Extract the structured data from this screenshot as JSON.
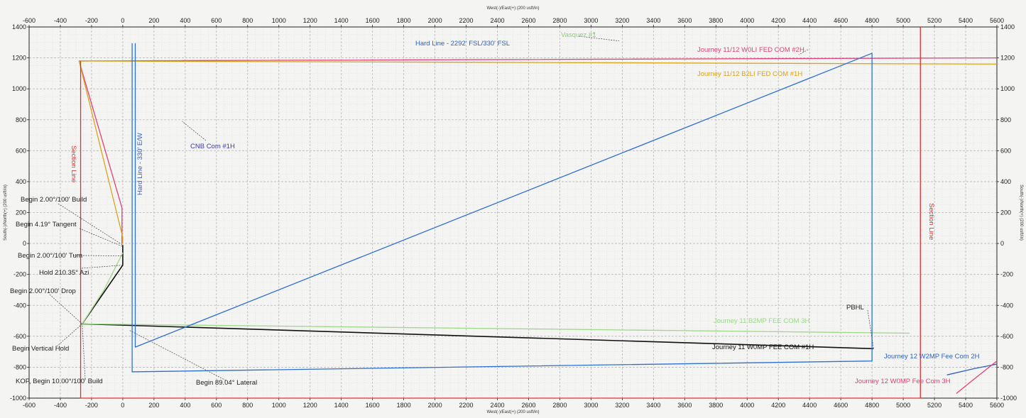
{
  "chart_data": {
    "type": "line",
    "xlabel": "West(-)/East(+) (200 usft/in)",
    "ylabel": "South(-)/North(+) (200 usft/in)",
    "xlim": [
      -600,
      5600
    ],
    "ylim": [
      -1000,
      1400
    ],
    "x_ticks": [
      -600,
      -400,
      -200,
      0,
      200,
      400,
      600,
      800,
      1000,
      1200,
      1400,
      1600,
      1800,
      2000,
      2200,
      2400,
      2600,
      2800,
      3000,
      3200,
      3400,
      3600,
      3800,
      4000,
      4200,
      4400,
      4600,
      4800,
      5000,
      5200,
      5400,
      5600
    ],
    "y_ticks": [
      -1000,
      -800,
      -600,
      -400,
      -200,
      0,
      200,
      400,
      600,
      800,
      1000,
      1200,
      1400
    ],
    "grid": true,
    "series": [
      {
        "name": "Journey 11 W0MP FEE COM #1H",
        "color": "#111111",
        "x": [
          0,
          0,
          -260,
          4810
        ],
        "y": [
          -10,
          -140,
          -520,
          -680
        ]
      },
      {
        "name": "Journey 11 B2MP FEE COM 3H",
        "color": "#9ed88a",
        "x": [
          0,
          -120,
          -260,
          5040
        ],
        "y": [
          -60,
          -300,
          -520,
          -580
        ]
      },
      {
        "name": "Journey 11/12 W0LI FED COM #2H",
        "color": "#e2407a",
        "x": [
          -5,
          -5,
          -280,
          5600
        ],
        "y": [
          0,
          230,
          1180,
          1200
        ]
      },
      {
        "name": "Journey 11/12 B2LI FED COM #1H",
        "color": "#d9a418",
        "x": [
          0,
          0,
          -280,
          5600
        ],
        "y": [
          0,
          40,
          1180,
          1160
        ]
      },
      {
        "name": "Journey 12 W2MP Fee Com 2H",
        "color": "#2e5fc4",
        "x": [
          5280,
          5450,
          5600
        ],
        "y": [
          -850,
          -810,
          -780
        ]
      },
      {
        "name": "Journey 12 W0MP Fee Com 3H",
        "color": "#e2407a",
        "x": [
          5340,
          5450,
          5600
        ],
        "y": [
          -970,
          -880,
          -760
        ]
      },
      {
        "name": "Hard Line - 2292' FSL/330' FSL",
        "color": "#2e6fd0",
        "x": [
          60,
          60,
          4800,
          4800,
          80,
          80
        ],
        "y": [
          1295,
          -830,
          -760,
          1230,
          -670,
          1295
        ]
      },
      {
        "name": "Section Line",
        "color": "#e03030",
        "x": [
          -270,
          -270,
          5110,
          5110
        ],
        "y": [
          1180,
          -1000,
          -1000,
          1400
        ]
      },
      {
        "name": "Vasquez #1",
        "color": "#9ed88a",
        "x": [
          3020
        ],
        "y": [
          1360
        ]
      }
    ],
    "labels": {
      "vasquez": "Vasquez #1",
      "hard_line_h": "Hard Line - 2292' FSL/330' FSL",
      "hard_line_v": "Hard Line - 330' E/W",
      "w0li": "Journey 11/12 W0LI FED COM #2H",
      "b2li": "Journey 11/12 B2LI FED COM #1H",
      "cnb": "CNB Com #1H",
      "section_left": "Section Line",
      "section_right": "Section Line",
      "pbhl": "PBHL",
      "b2mp": "Journey 11 B2MP FEE COM 3H",
      "w0mp": "Journey 11 W0MP FEE COM #1H",
      "w2mp12": "Journey 12 W2MP Fee Com 2H",
      "w0mp12": "Journey 12 W0MP Fee Com 3H"
    },
    "annotations": [
      "Begin 2.00°/100' Build",
      "Begin 4.19° Tangent",
      "Begin 2.00°/100' Turn",
      "Hold 210.35° Azi",
      "Begin 2.00°/100' Drop",
      "Begin Vertical Hold",
      "KOP, Begin 10.00°/100' Build",
      "Begin 89.04° Lateral"
    ]
  }
}
